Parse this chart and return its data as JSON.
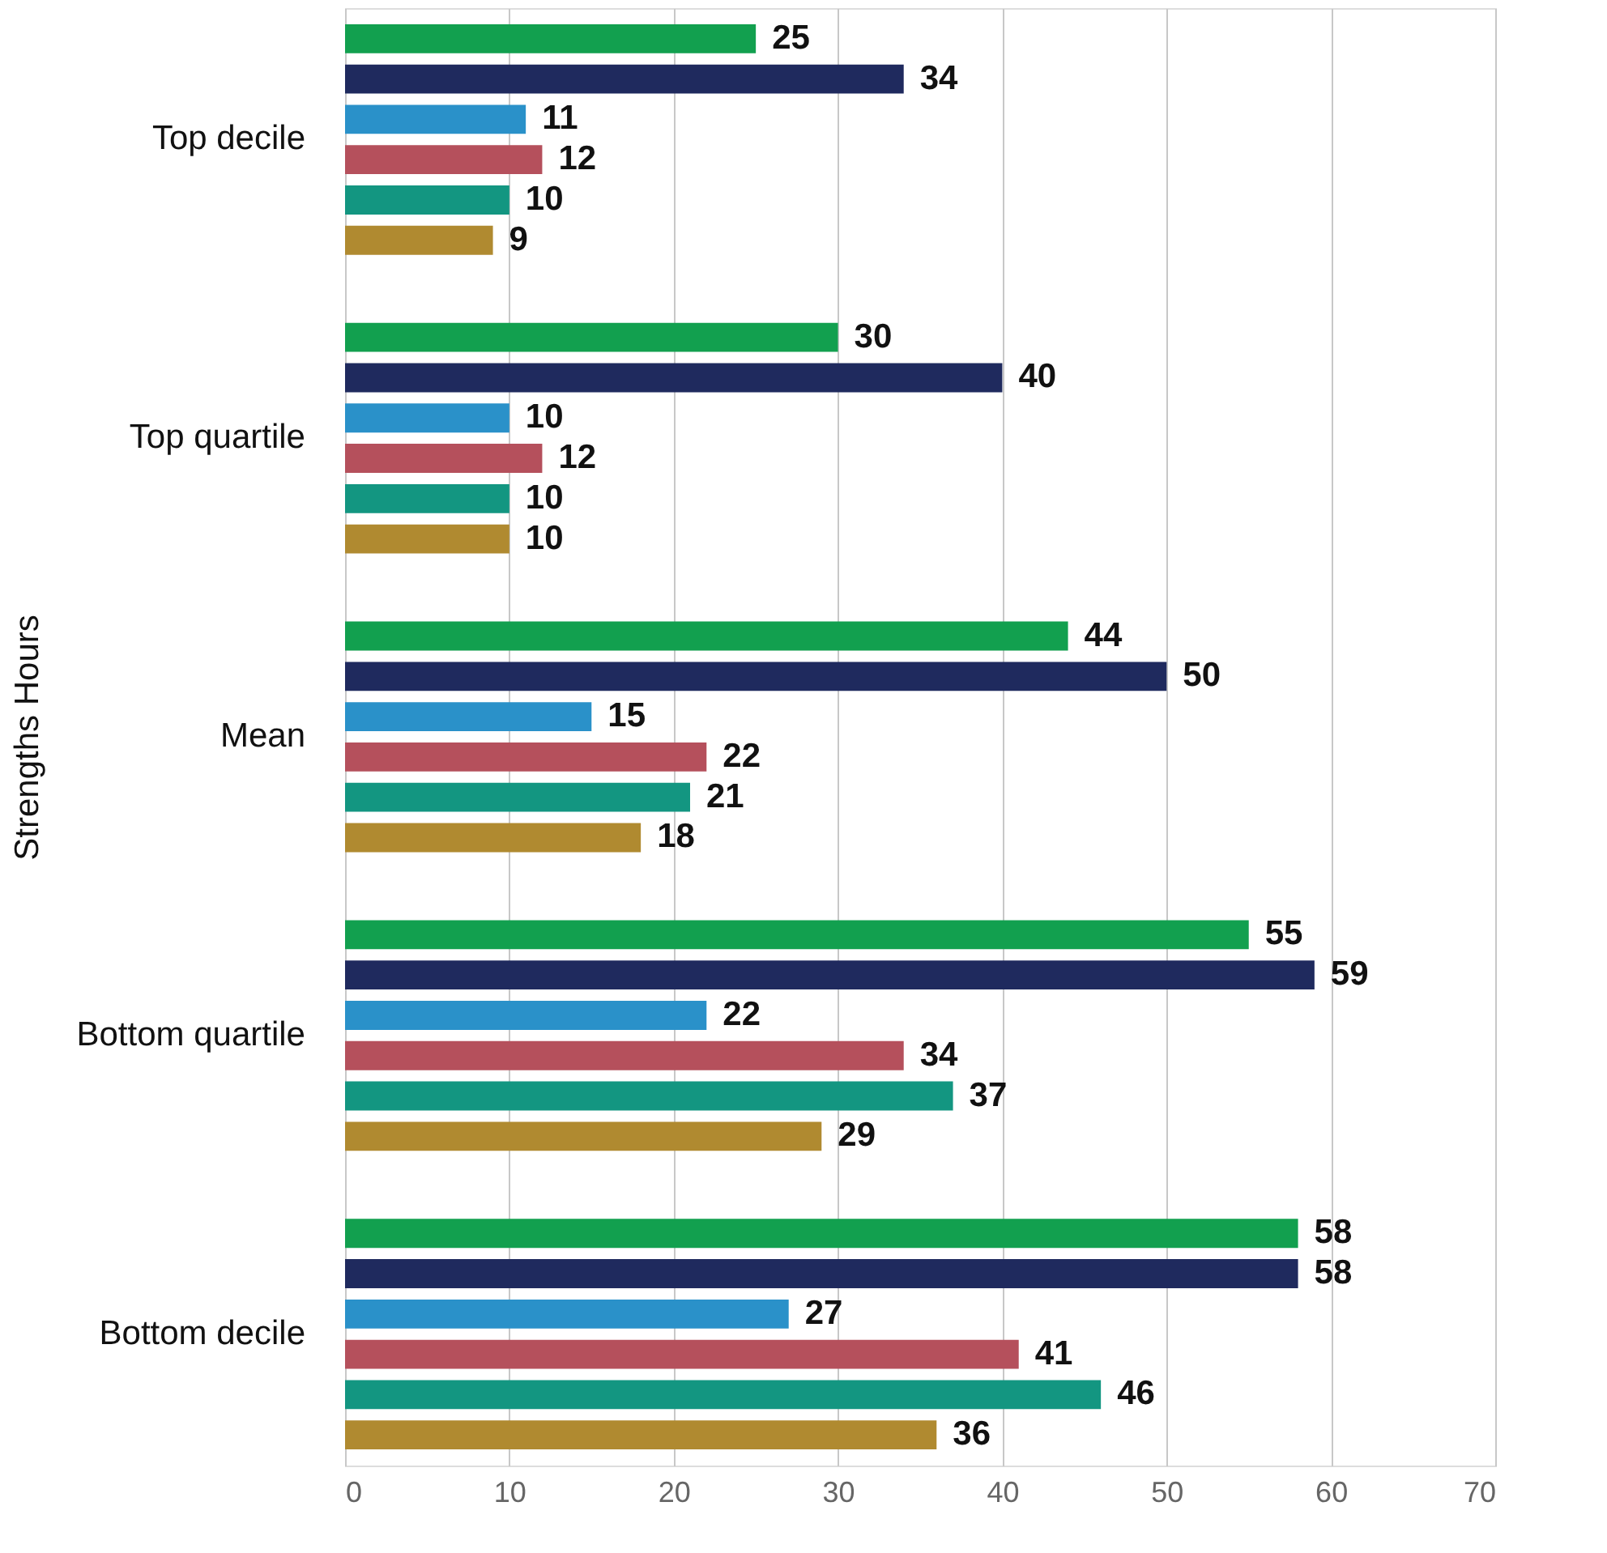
{
  "chart_data": {
    "type": "bar",
    "orientation": "horizontal",
    "ylabel": "Strengths Hours",
    "categories": [
      "Top decile",
      "Top quartile",
      "Mean",
      "Bottom quartile",
      "Bottom decile"
    ],
    "series": [
      {
        "color": "#12a04f",
        "values": [
          25,
          30,
          44,
          55,
          58
        ]
      },
      {
        "color": "#1f2a5e",
        "values": [
          34,
          40,
          50,
          59,
          58
        ]
      },
      {
        "color": "#2a91c9",
        "values": [
          11,
          10,
          15,
          22,
          27
        ]
      },
      {
        "color": "#b5505c",
        "values": [
          12,
          12,
          22,
          34,
          41
        ]
      },
      {
        "color": "#139681",
        "values": [
          10,
          10,
          21,
          37,
          46
        ]
      },
      {
        "color": "#b08a30",
        "values": [
          9,
          10,
          18,
          29,
          36
        ]
      }
    ],
    "xlim": [
      0,
      70
    ],
    "xticks": [
      0,
      10,
      20,
      30,
      40,
      50,
      60,
      70
    ],
    "grid": "x",
    "data_labels": true,
    "legend": false
  }
}
